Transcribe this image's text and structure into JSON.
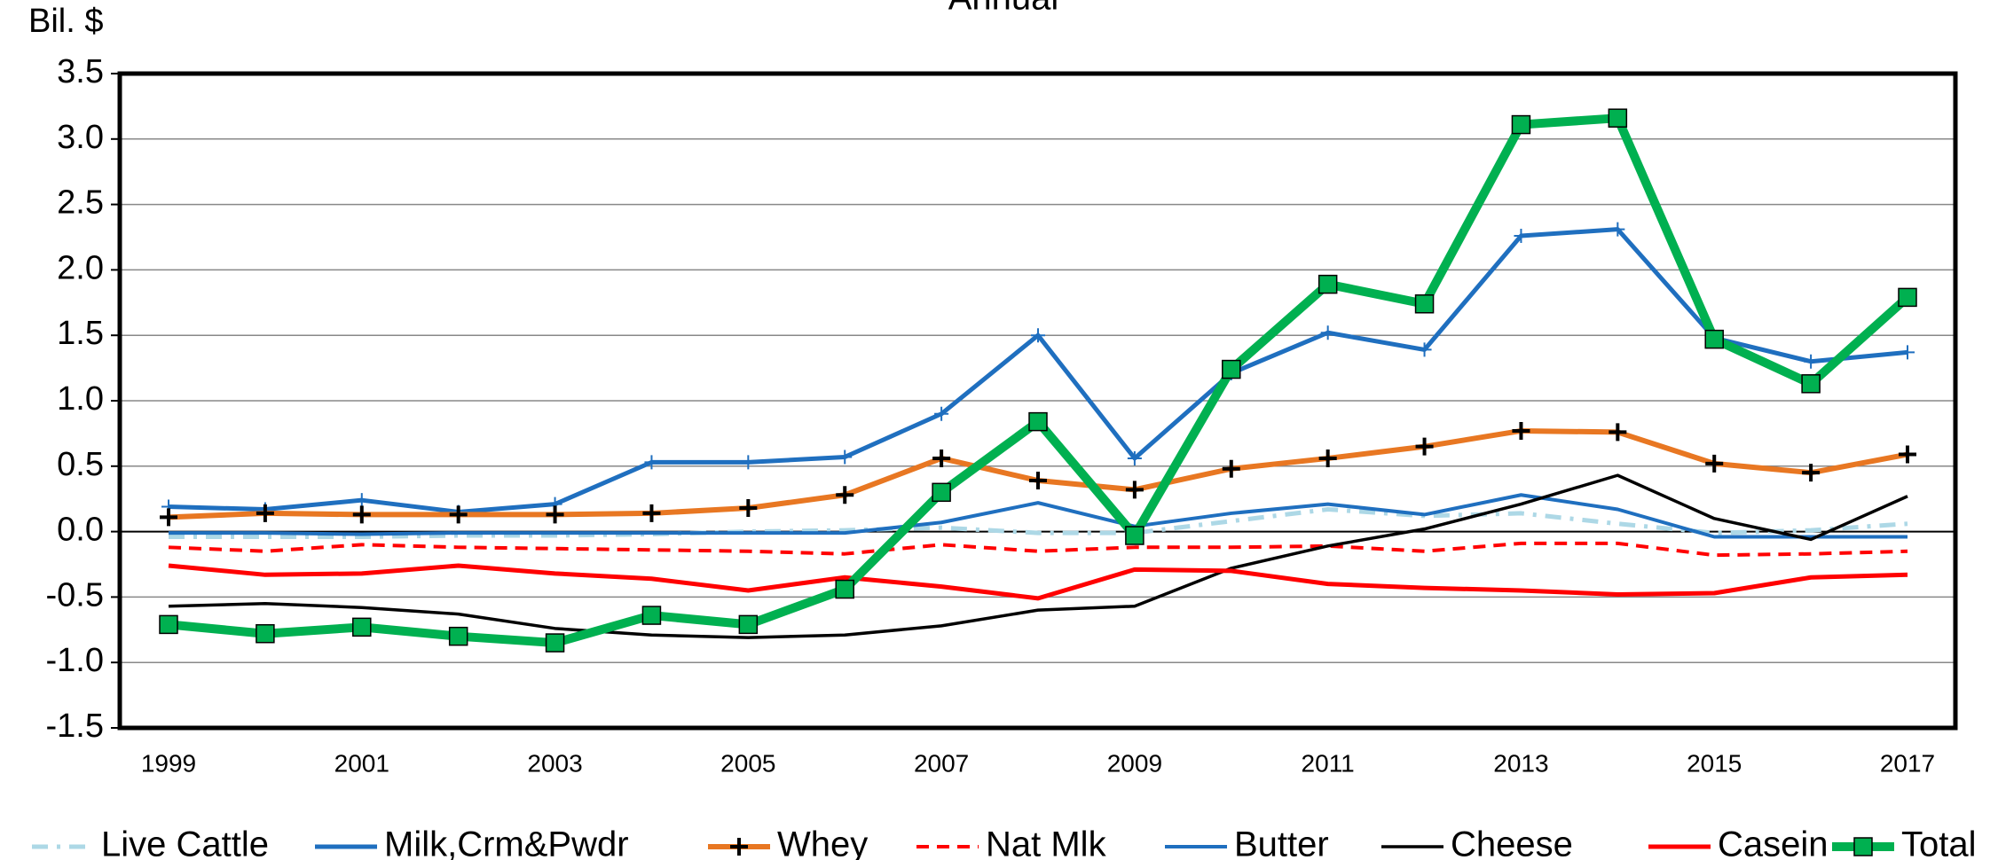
{
  "chart_data": {
    "type": "line",
    "title": "Annual",
    "ylabel": "Bil. $",
    "x": [
      1999,
      null,
      2001,
      null,
      2003,
      null,
      2005,
      null,
      2007,
      null,
      2009,
      null,
      2011,
      null,
      2013,
      null,
      2015,
      null,
      2017
    ],
    "ylim": [
      -1.5,
      3.5
    ],
    "yticks": [
      -1.5,
      {
        "value": -1,
        "label": "-1.0"
      },
      -0.5,
      {
        "value": 0,
        "label": "0.0"
      },
      0.5,
      {
        "value": 1,
        "label": "1.0"
      },
      1.5,
      {
        "value": 2,
        "label": "2.0"
      },
      2.5,
      {
        "value": 3,
        "label": "3.0"
      },
      3.5
    ],
    "grid": true,
    "legend": "bottom",
    "series": [
      {
        "name": "Live Cattle",
        "color": "#add8e6",
        "dash": "dashdot",
        "values": [
          -0.04,
          -0.04,
          -0.04,
          -0.03,
          -0.03,
          -0.02,
          0.0,
          0.01,
          0.03,
          -0.01,
          -0.01,
          0.08,
          0.17,
          0.12,
          0.14,
          0.06,
          -0.01,
          0.01,
          0.06
        ]
      },
      {
        "name": "Milk,Crm&Pwdr",
        "color": "#1f6fbf",
        "marker": "thin-plus",
        "values": [
          0.19,
          0.17,
          0.24,
          0.15,
          0.21,
          0.53,
          0.53,
          0.57,
          0.9,
          1.5,
          0.56,
          1.21,
          1.52,
          1.39,
          2.26,
          2.31,
          1.48,
          1.3,
          1.37
        ]
      },
      {
        "name": "Whey",
        "color": "#e87722",
        "marker": "plus",
        "values": [
          0.11,
          0.14,
          0.13,
          0.13,
          0.13,
          0.14,
          0.18,
          0.28,
          0.56,
          0.39,
          0.32,
          0.48,
          0.56,
          0.65,
          0.77,
          0.76,
          0.52,
          0.45,
          0.59
        ]
      },
      {
        "name": "Nat Mlk",
        "color": "#ff0000",
        "dash": "dash",
        "values": [
          -0.12,
          -0.15,
          -0.1,
          -0.12,
          -0.13,
          -0.14,
          -0.15,
          -0.17,
          -0.1,
          -0.15,
          -0.12,
          -0.12,
          -0.11,
          -0.15,
          -0.09,
          -0.09,
          -0.18,
          -0.17,
          -0.15
        ]
      },
      {
        "name": "Butter",
        "color": "#1f6fbf",
        "values": [
          -0.01,
          -0.01,
          -0.02,
          -0.01,
          -0.01,
          -0.01,
          -0.01,
          -0.01,
          0.07,
          0.22,
          0.04,
          0.14,
          0.21,
          0.13,
          0.28,
          0.17,
          -0.04,
          -0.04,
          -0.04
        ]
      },
      {
        "name": "Cheese",
        "color": "#000000",
        "values": [
          -0.57,
          -0.55,
          -0.58,
          -0.63,
          -0.74,
          -0.79,
          -0.81,
          -0.79,
          -0.72,
          -0.6,
          -0.57,
          -0.28,
          -0.11,
          0.02,
          0.21,
          0.43,
          0.1,
          -0.06,
          0.27
        ]
      },
      {
        "name": "Casein",
        "color": "#ff0000",
        "values": [
          -0.26,
          -0.33,
          -0.32,
          -0.26,
          -0.32,
          -0.36,
          -0.45,
          -0.35,
          -0.42,
          -0.51,
          -0.29,
          -0.3,
          -0.4,
          -0.43,
          -0.45,
          -0.48,
          -0.47,
          -0.35,
          -0.33
        ]
      },
      {
        "name": "Total",
        "color": "#00b050",
        "marker": "square",
        "values": [
          -0.71,
          -0.78,
          -0.73,
          -0.8,
          -0.85,
          -0.64,
          -0.71,
          -0.44,
          0.3,
          0.84,
          -0.03,
          1.24,
          1.89,
          1.74,
          3.11,
          3.16,
          1.47,
          1.13,
          1.79
        ]
      }
    ]
  }
}
